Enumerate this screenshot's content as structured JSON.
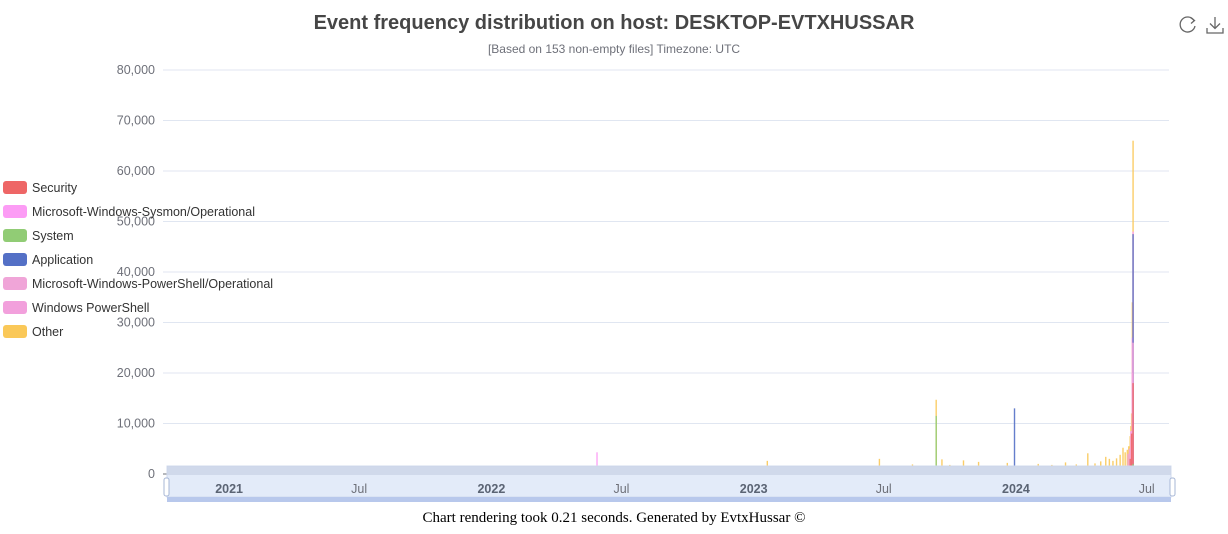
{
  "chart_data": {
    "type": "bar",
    "stacked": true,
    "title": "Event frequency distribution on host: DESKTOP-EVTXHUSSAR",
    "subtitle": "[Based on 153 non-empty files] Timezone: UTC",
    "ylim": [
      0,
      80000
    ],
    "yticks": [
      "80,000",
      "70,000",
      "60,000",
      "50,000",
      "40,000",
      "30,000",
      "20,000",
      "10,000",
      "0"
    ],
    "ytick_values": [
      80000,
      70000,
      60000,
      50000,
      40000,
      30000,
      20000,
      10000,
      0
    ],
    "x_range": [
      "2020-10-01",
      "2024-08-01"
    ],
    "xticks": [
      {
        "date": "2021-01-01",
        "label": "2021",
        "major": true
      },
      {
        "date": "2021-07-01",
        "label": "Jul",
        "major": false
      },
      {
        "date": "2022-01-01",
        "label": "2022",
        "major": true
      },
      {
        "date": "2022-07-01",
        "label": "Jul",
        "major": false
      },
      {
        "date": "2023-01-01",
        "label": "2023",
        "major": true
      },
      {
        "date": "2023-07-01",
        "label": "Jul",
        "major": false
      },
      {
        "date": "2024-01-01",
        "label": "2024",
        "major": true
      },
      {
        "date": "2024-07-01",
        "label": "Jul",
        "major": false
      }
    ],
    "grid": true,
    "legend_position": "left",
    "series": [
      {
        "name": "Security",
        "color": "#ee6666",
        "points": [
          [
            "2024-06-12",
            18000
          ],
          [
            "2024-06-10",
            8000
          ],
          [
            "2024-06-08",
            3000
          ]
        ]
      },
      {
        "name": "Microsoft-Windows-Sysmon/Operational",
        "color": "#fc9cf5",
        "points": [
          [
            "2024-06-12",
            48000
          ],
          [
            "2024-06-11",
            27000
          ],
          [
            "2022-05-28",
            4300
          ],
          [
            "2024-06-09",
            8500
          ]
        ]
      },
      {
        "name": "System",
        "color": "#91cc75",
        "points": [
          [
            "2023-09-12",
            11500
          ],
          [
            "2024-06-12",
            2000
          ],
          [
            "2024-05-20",
            1500
          ],
          [
            "2023-12-05",
            800
          ]
        ]
      },
      {
        "name": "Application",
        "color": "#5470c6",
        "points": [
          [
            "2023-12-30",
            13000
          ],
          [
            "2024-06-12",
            47500
          ]
        ]
      },
      {
        "name": "Microsoft-Windows-PowerShell/Operational",
        "color": "#f0a5d8",
        "points": [
          [
            "2024-06-12",
            26000
          ],
          [
            "2024-06-07",
            5000
          ]
        ]
      },
      {
        "name": "Windows PowerShell",
        "color": "#f2a0dc",
        "points": [
          [
            "2024-06-11",
            20000
          ],
          [
            "2024-06-05",
            4000
          ]
        ]
      },
      {
        "name": "Other",
        "color": "#fac858",
        "points": [
          [
            "2024-06-12",
            66000
          ],
          [
            "2024-06-11",
            34000
          ],
          [
            "2023-09-12",
            14700
          ],
          [
            "2024-06-10",
            12000
          ],
          [
            "2024-06-09",
            9500
          ],
          [
            "2024-06-08",
            7500
          ],
          [
            "2024-06-06",
            5500
          ],
          [
            "2024-06-04",
            4800
          ],
          [
            "2024-06-01",
            4300
          ],
          [
            "2024-05-29",
            5200
          ],
          [
            "2024-05-25",
            3800
          ],
          [
            "2024-05-20",
            3100
          ],
          [
            "2024-05-15",
            2600
          ],
          [
            "2024-05-10",
            3000
          ],
          [
            "2024-05-05",
            3400
          ],
          [
            "2024-04-28",
            2500
          ],
          [
            "2024-04-20",
            2100
          ],
          [
            "2024-04-10",
            4100
          ],
          [
            "2024-03-25",
            1900
          ],
          [
            "2024-03-10",
            2300
          ],
          [
            "2024-02-20",
            1800
          ],
          [
            "2024-02-01",
            2000
          ],
          [
            "2024-01-15",
            1500
          ],
          [
            "2023-12-20",
            2200
          ],
          [
            "2023-12-01",
            1600
          ],
          [
            "2023-11-10",
            2400
          ],
          [
            "2023-10-20",
            2700
          ],
          [
            "2023-10-01",
            1800
          ],
          [
            "2023-09-20",
            2900
          ],
          [
            "2023-08-10",
            1900
          ],
          [
            "2023-06-25",
            3000
          ],
          [
            "2023-05-10",
            1200
          ],
          [
            "2023-03-10",
            1400
          ],
          [
            "2023-01-20",
            2600
          ],
          [
            "2022-10-05",
            1500
          ],
          [
            "2022-07-20",
            1600
          ],
          [
            "2022-03-01",
            1200
          ],
          [
            "2021-12-01",
            1000
          ],
          [
            "2021-08-01",
            800
          ],
          [
            "2021-04-01",
            700
          ],
          [
            "2021-01-10",
            600
          ]
        ]
      }
    ]
  },
  "legend": {
    "items": [
      {
        "label": "Security",
        "color": "#ee6666"
      },
      {
        "label": "Microsoft-Windows-Sysmon/Operational",
        "color": "#fc9cf5"
      },
      {
        "label": "System",
        "color": "#91cc75"
      },
      {
        "label": "Application",
        "color": "#5470c6"
      },
      {
        "label": "Microsoft-Windows-PowerShell/Operational",
        "color": "#f0a5d8"
      },
      {
        "label": "Windows PowerShell",
        "color": "#f2a0dc"
      },
      {
        "label": "Other",
        "color": "#fac858"
      }
    ]
  },
  "toolbox": {
    "icons": [
      "restore-icon",
      "save-image-icon"
    ]
  },
  "data_zoom": {
    "start_fraction": 0,
    "end_fraction": 1
  },
  "footer": {
    "text": "Chart rendering took 0.21 seconds. Generated by EvtxHussar ©"
  }
}
